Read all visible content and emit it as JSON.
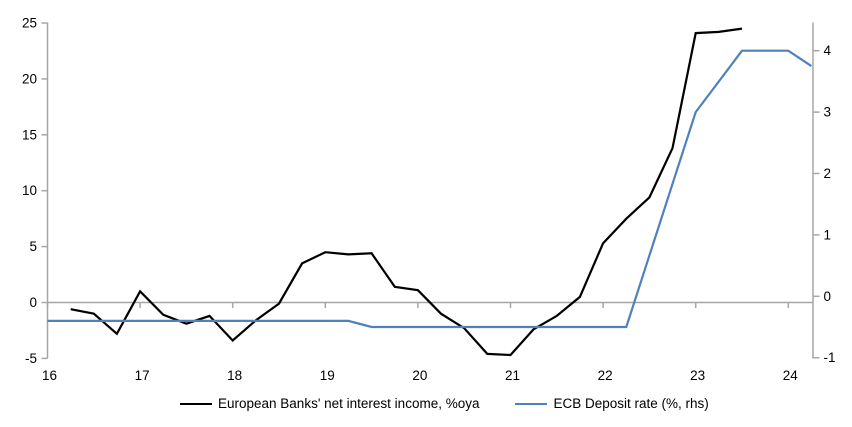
{
  "chart_data": {
    "type": "line",
    "title": "",
    "x_axis": {
      "ticks": [
        16,
        17,
        18,
        19,
        20,
        21,
        22,
        23,
        24
      ],
      "range": [
        16,
        24.35
      ],
      "grid": false
    },
    "left_axis": {
      "label": "",
      "ticks": [
        25,
        20,
        15,
        10,
        5,
        0,
        -5
      ],
      "range": [
        -5,
        25
      ]
    },
    "right_axis": {
      "label": "",
      "ticks": [
        4,
        3,
        2,
        1,
        0,
        -1
      ],
      "range": [
        -1,
        4.4
      ]
    },
    "zero_line": true,
    "legend_position": "bottom",
    "series": [
      {
        "id": "european-banks-net-interest-income",
        "name": "European Banks' net interest income, %oya",
        "axis": "left",
        "color": "#000000",
        "points": [
          [
            16.25,
            -0.6
          ],
          [
            16.5,
            -1.0
          ],
          [
            16.75,
            -2.8
          ],
          [
            17.0,
            1.0
          ],
          [
            17.25,
            -1.1
          ],
          [
            17.5,
            -1.9
          ],
          [
            17.75,
            -1.2
          ],
          [
            18.0,
            -3.4
          ],
          [
            18.25,
            -1.6
          ],
          [
            18.5,
            -0.1
          ],
          [
            18.75,
            3.5
          ],
          [
            19.0,
            4.5
          ],
          [
            19.25,
            4.3
          ],
          [
            19.5,
            4.4
          ],
          [
            19.75,
            1.4
          ],
          [
            20.0,
            1.1
          ],
          [
            20.25,
            -1.0
          ],
          [
            20.5,
            -2.3
          ],
          [
            20.75,
            -4.6
          ],
          [
            21.0,
            -4.7
          ],
          [
            21.25,
            -2.4
          ],
          [
            21.5,
            -1.2
          ],
          [
            21.75,
            0.5
          ],
          [
            22.0,
            5.3
          ],
          [
            22.25,
            7.5
          ],
          [
            22.5,
            9.4
          ],
          [
            22.75,
            13.8
          ],
          [
            23.0,
            24.1
          ],
          [
            23.25,
            24.2
          ],
          [
            23.5,
            24.5
          ]
        ]
      },
      {
        "id": "ecb-deposit-rate",
        "name": "ECB Deposit rate (%, rhs)",
        "axis": "right",
        "color": "#4f81bd",
        "points": [
          [
            16.0,
            -0.4
          ],
          [
            19.25,
            -0.4
          ],
          [
            19.5,
            -0.5
          ],
          [
            22.25,
            -0.5
          ],
          [
            23.0,
            3.0
          ],
          [
            23.5,
            4.0
          ],
          [
            24.0,
            4.0
          ],
          [
            24.25,
            3.75
          ]
        ]
      }
    ]
  },
  "legend": {
    "items": [
      {
        "label": "European Banks' net interest income, %oya",
        "color": "#000000"
      },
      {
        "label": "ECB Deposit rate (%, rhs)",
        "color": "#4f81bd"
      }
    ]
  },
  "colors": {
    "axis": "#a6a6a6",
    "zero_line": "#a6a6a6",
    "text": "#000000",
    "background": "#ffffff"
  }
}
